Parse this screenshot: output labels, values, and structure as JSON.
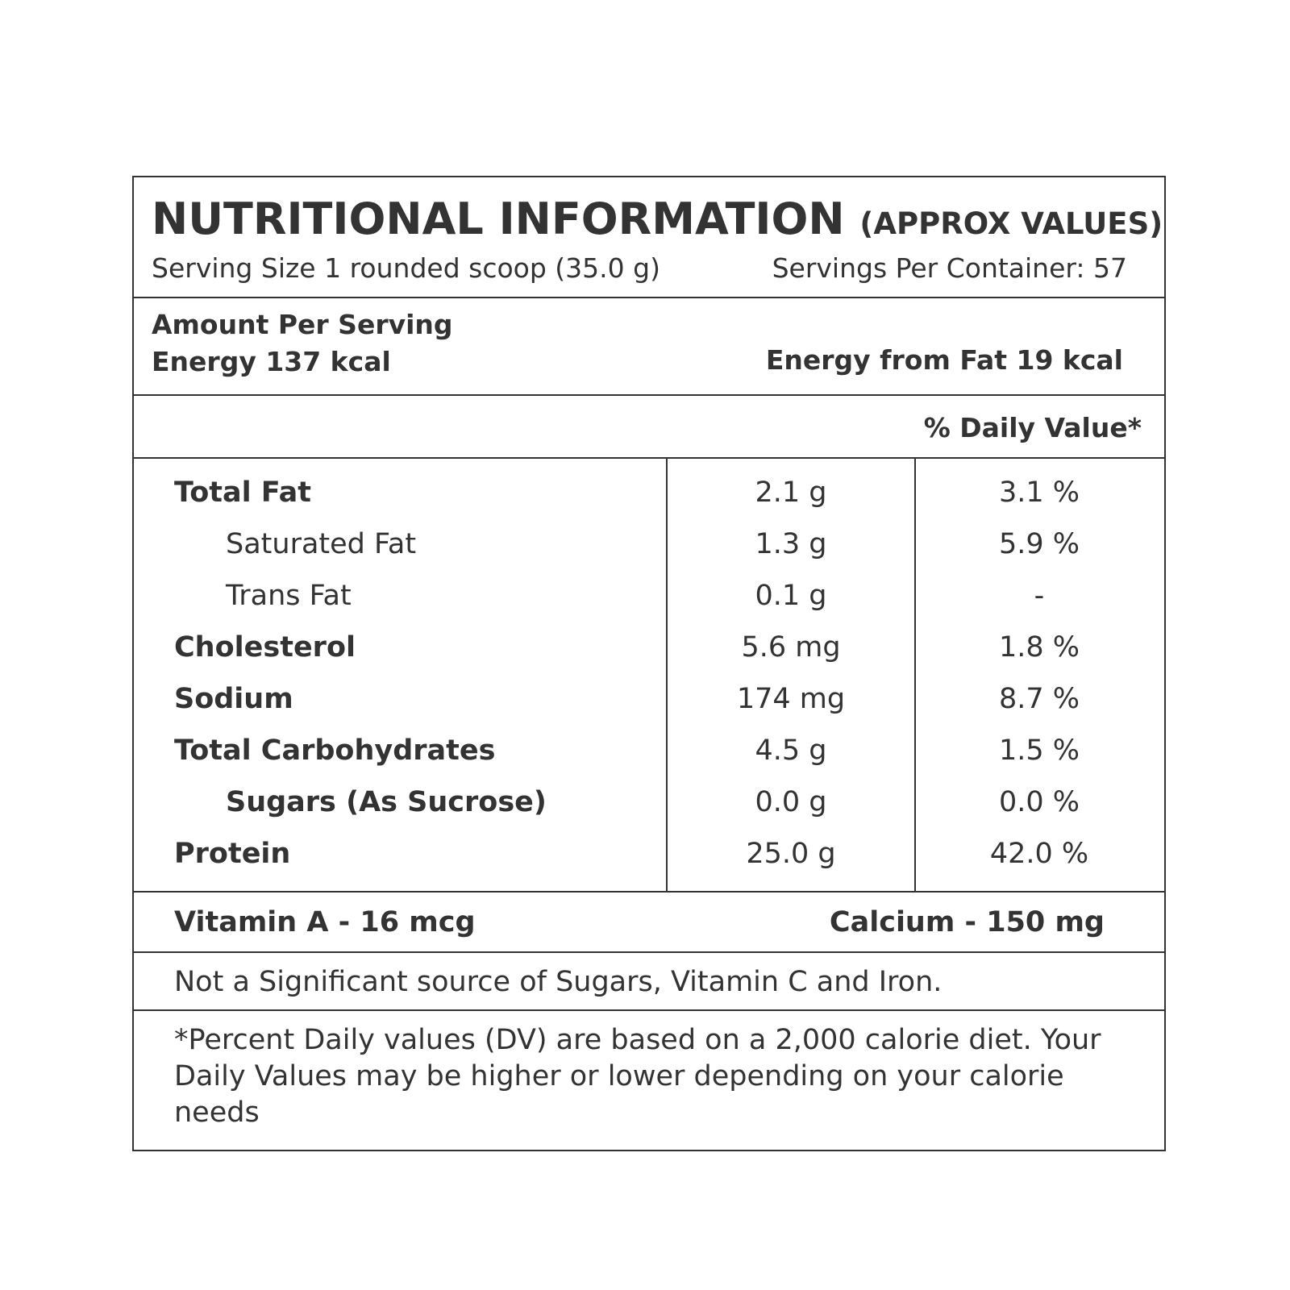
{
  "header": {
    "title": "NUTRITIONAL INFORMATION",
    "subtitle": "(APPROX VALUES)",
    "serving_size": "Serving Size 1 rounded scoop (35.0 g)",
    "servings_per_container": "Servings Per Container: 57"
  },
  "energy": {
    "heading": "Amount Per Serving",
    "energy": "Energy 137 kcal",
    "energy_from_fat": "Energy from Fat 19 kcal"
  },
  "table": {
    "dv_header": "% Daily Value*",
    "rows": [
      [
        "Total Fat",
        "2.1 g",
        "3.1 %"
      ],
      [
        "Saturated Fat",
        "1.3 g",
        "5.9 %"
      ],
      [
        "Trans Fat",
        "0.1 g",
        "-"
      ],
      [
        "Cholesterol",
        "5.6 mg",
        "1.8 %"
      ],
      [
        "Sodium",
        "174 mg",
        "8.7 %"
      ],
      [
        "Total Carbohydrates",
        "4.5 g",
        "1.5 %"
      ],
      [
        "Sugars (As Sucrose)",
        "0.0 g",
        "0.0 %"
      ],
      [
        "Protein",
        "25.0 g",
        "42.0 %"
      ]
    ]
  },
  "minerals": {
    "vitamin_a": "Vitamin A - 16 mcg",
    "calcium": "Calcium - 150 mg"
  },
  "note": "Not a Significant source of Sugars, Vitamin C and Iron.",
  "footnote": "*Percent Daily values (DV) are based on a 2,000 calorie diet. Your Daily Values may be higher or lower depending on your calorie needs"
}
